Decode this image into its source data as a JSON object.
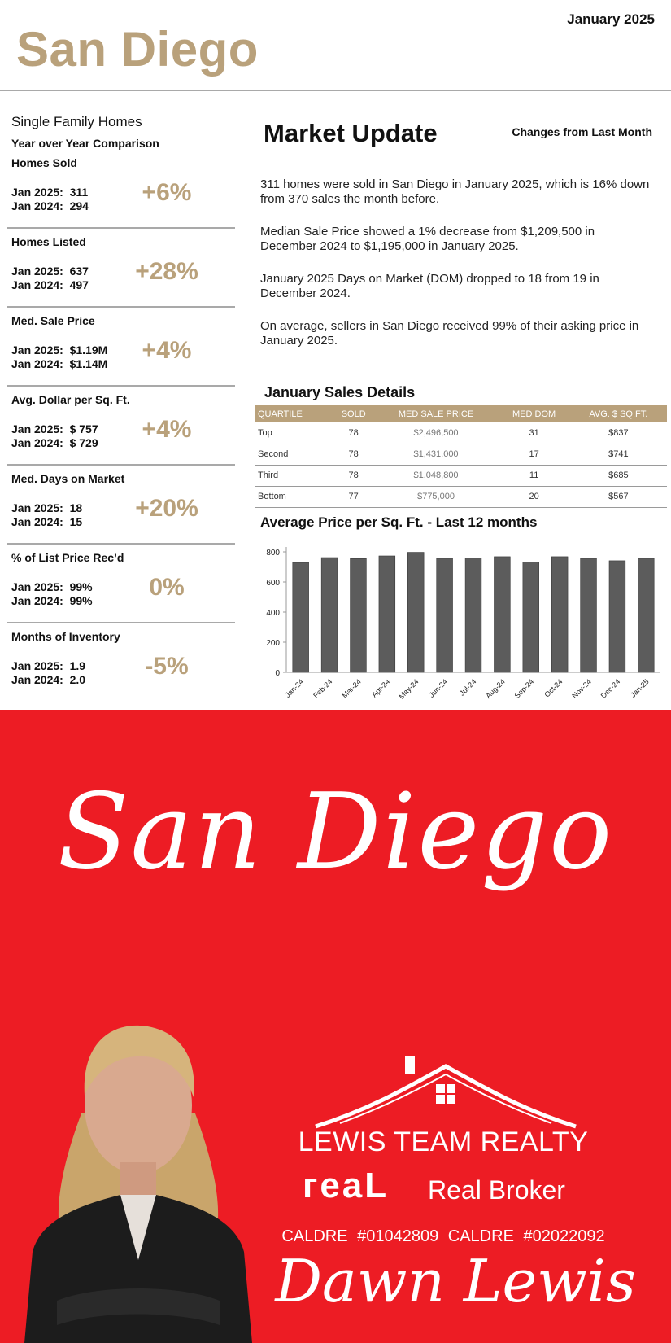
{
  "header": {
    "date": "January 2025",
    "city": "San Diego"
  },
  "left": {
    "heading": "Single Family Homes",
    "subheading": "Year over Year Comparison",
    "metrics": [
      {
        "label": "Homes Sold",
        "current": "Jan 2025:  311",
        "previous": "Jan 2024:  294",
        "change": "+6%"
      },
      {
        "label": "Homes Listed",
        "current": "Jan 2025:  637",
        "previous": "Jan 2024:  497",
        "change": "+28%"
      },
      {
        "label": "Med. Sale Price",
        "current": "Jan 2025:  $1.19M",
        "previous": "Jan 2024:  $1.14M",
        "change": "+4%"
      },
      {
        "label": "Avg. Dollar per Sq. Ft.",
        "current": "Jan 2025:  $ 757",
        "previous": "Jan 2024:  $ 729",
        "change": "+4%"
      },
      {
        "label": "Med. Days on Market",
        "current": "Jan 2025:  18",
        "previous": "Jan 2024:  15",
        "change": "+20%"
      },
      {
        "label": "% of List Price Rec’d",
        "current": "Jan 2025:  99%",
        "previous": "Jan 2024:  99%",
        "change": "0%"
      },
      {
        "label": "Months of Inventory",
        "current": "Jan 2025:  1.9",
        "previous": "Jan 2024:  2.0",
        "change": "-5%"
      }
    ]
  },
  "market": {
    "title": "Market Update",
    "changes_label": "Changes from Last Month",
    "paragraphs": [
      "311 homes were sold in San Diego in January 2025, which is 16% down from 370 sales the month before.",
      "Median Sale Price showed a 1% decrease from $1,209,500 in December 2024 to $1,195,000 in January 2025.",
      "January 2025 Days on Market (DOM) dropped to 18 from 19 in December 2024.",
      "On average, sellers in San Diego received 99% of their asking price in January 2025."
    ]
  },
  "sales_details": {
    "title": "January Sales Details",
    "columns": [
      "QUARTILE",
      "SOLD",
      "MED SALE PRICE",
      "MED DOM",
      "AVG. $ SQ.FT."
    ],
    "rows": [
      [
        "Top",
        "78",
        "$2,496,500",
        "31",
        "$837"
      ],
      [
        "Second",
        "78",
        "$1,431,000",
        "17",
        "$741"
      ],
      [
        "Third",
        "78",
        "$1,048,800",
        "11",
        "$685"
      ],
      [
        "Bottom",
        "77",
        "$775,000",
        "20",
        "$567"
      ]
    ]
  },
  "chart_data": {
    "type": "bar",
    "title": "Average Price per Sq. Ft. - Last 12 months",
    "categories": [
      "Jan-24",
      "Feb-24",
      "Mar-24",
      "Apr-24",
      "May-24",
      "Jun-24",
      "Jul-24",
      "Aug-24",
      "Sep-24",
      "Oct-24",
      "Nov-24",
      "Dec-24",
      "Jan-25"
    ],
    "values": [
      729,
      762,
      755,
      773,
      797,
      757,
      758,
      768,
      732,
      768,
      757,
      741,
      757
    ],
    "ylim": [
      0,
      800
    ],
    "yticks": [
      0,
      200,
      400,
      600,
      800
    ],
    "xlabel": "",
    "ylabel": "",
    "grid": false,
    "bar_color": "#5c5c5c"
  },
  "promo": {
    "city_script": "San Diego",
    "brand": "LEWIS TEAM REALTY",
    "broker_mark": "гeaL",
    "broker_text": "Real Broker",
    "caldre": "CALDRE #01042809   CALDRE #02022092",
    "agent_signature": "Dawn Lewis",
    "background_color": "#ed1c24"
  }
}
